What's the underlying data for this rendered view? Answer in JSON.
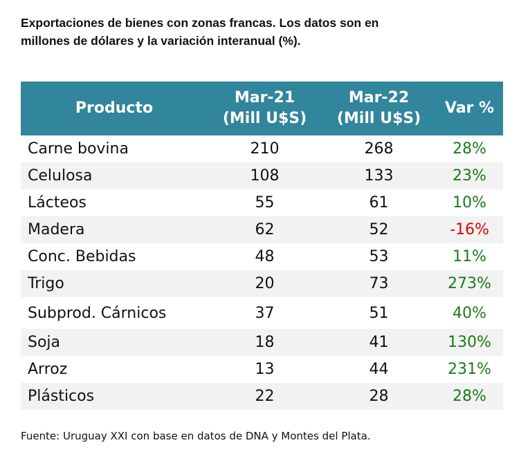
{
  "title": [
    "Exportaciones de bienes con zonas francas. Los datos son en",
    "millones de dólares y la variación interanual (%)."
  ],
  "table": {
    "header": [
      [
        "Producto"
      ],
      [
        "Mar-21",
        "(Mill U$S)"
      ],
      [
        "Mar-22",
        "(Mill U$S)"
      ],
      [
        "Var %"
      ]
    ],
    "rows": [
      [
        "Carne bovina",
        210,
        268,
        "28%"
      ],
      [
        "Celulosa",
        108,
        133,
        "23%"
      ],
      [
        "Lácteos",
        55,
        61,
        "10%"
      ],
      [
        "Madera",
        62,
        52,
        "-16%"
      ],
      [
        "Conc. Bebidas",
        48,
        53,
        "11%"
      ],
      [
        "Trigo",
        20,
        73,
        "273%"
      ],
      [
        "Subprod. Cárnicos",
        37,
        51,
        "40%"
      ],
      [
        "Soja",
        18,
        41,
        "130%"
      ],
      [
        "Arroz",
        13,
        44,
        "231%"
      ],
      [
        "Plásticos",
        22,
        28,
        "28%"
      ]
    ]
  },
  "footer": "Fuente: Uruguay XXI con base en datos de DNA y Montes del Plata."
}
